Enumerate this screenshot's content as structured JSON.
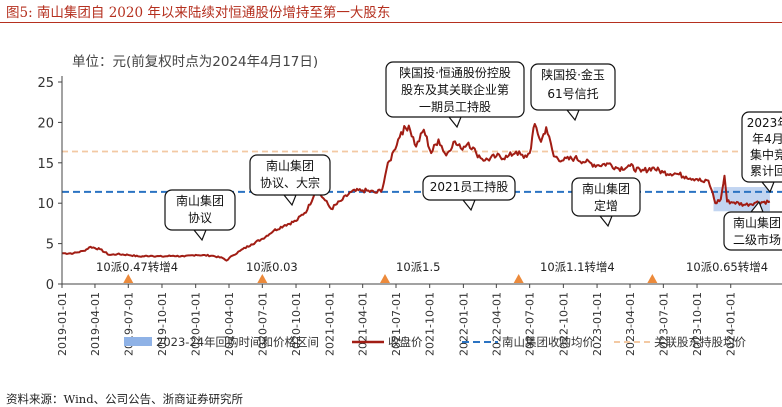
{
  "figure": {
    "title": "图5:  南山集团自 2020 年以来陆续对恒通股份增持至第一大股东",
    "source": "资料来源：Wind、公司公告、浙商证券研究所"
  },
  "chart_data": {
    "type": "line",
    "unit_label": "单位：元(前复权时点为2024年4月17日)",
    "ylim": [
      0,
      25
    ],
    "yticks": [
      0,
      5,
      10,
      15,
      20,
      25
    ],
    "x_range": [
      "2019-01-01",
      "2024-04-17"
    ],
    "xticks": [
      "2019-01-01",
      "2019-04-01",
      "2019-07-01",
      "2019-10-01",
      "2020-01-01",
      "2020-04-01",
      "2020-07-01",
      "2020-10-01",
      "2021-01-01",
      "2021-04-01",
      "2021-07-01",
      "2021-10-01",
      "2022-01-01",
      "2022-04-01",
      "2022-07-01",
      "2022-10-01",
      "2023-01-01",
      "2023-04-01",
      "2023-07-01",
      "2023-10-01",
      "2024-01-01"
    ],
    "colors": {
      "close": "#a11d14",
      "repurchase_avg": "#2b73c2",
      "holder_avg": "#f3c9a3",
      "marker": "#ec8a3b",
      "repurchase_band": "#8fb2e6",
      "axis": "#444444",
      "text": "#333333"
    },
    "series": [
      {
        "name": "收盘价",
        "style": "line",
        "values": [
          [
            "2019-01-02",
            3.8
          ],
          [
            "2019-02-01",
            3.8
          ],
          [
            "2019-03-01",
            4.1
          ],
          [
            "2019-03-20",
            4.6
          ],
          [
            "2019-04-15",
            4.3
          ],
          [
            "2019-05-10",
            3.6
          ],
          [
            "2019-06-01",
            3.7
          ],
          [
            "2019-07-01",
            3.6
          ],
          [
            "2019-08-01",
            3.4
          ],
          [
            "2019-09-01",
            3.5
          ],
          [
            "2019-10-01",
            3.4
          ],
          [
            "2019-11-01",
            3.5
          ],
          [
            "2019-12-01",
            3.4
          ],
          [
            "2020-01-01",
            3.6
          ],
          [
            "2020-02-15",
            3.5
          ],
          [
            "2020-03-15",
            3.2
          ],
          [
            "2020-03-25",
            2.9
          ],
          [
            "2020-04-10",
            3.5
          ],
          [
            "2020-05-01",
            4.1
          ],
          [
            "2020-06-01",
            4.9
          ],
          [
            "2020-07-01",
            5.6
          ],
          [
            "2020-08-01",
            6.6
          ],
          [
            "2020-09-01",
            7.3
          ],
          [
            "2020-10-01",
            7.8
          ],
          [
            "2020-11-01",
            9.2
          ],
          [
            "2020-11-25",
            11.7
          ],
          [
            "2020-12-15",
            10.6
          ],
          [
            "2021-01-05",
            9.3
          ],
          [
            "2021-02-01",
            10.3
          ],
          [
            "2021-03-01",
            11.4
          ],
          [
            "2021-04-01",
            11.6
          ],
          [
            "2021-05-10",
            11.3
          ],
          [
            "2021-05-25",
            11.8
          ],
          [
            "2021-06-05",
            14.2
          ],
          [
            "2021-06-25",
            16.5
          ],
          [
            "2021-07-15",
            18.8
          ],
          [
            "2021-08-05",
            19.6
          ],
          [
            "2021-08-25",
            17.0
          ],
          [
            "2021-09-15",
            19.1
          ],
          [
            "2021-10-05",
            16.2
          ],
          [
            "2021-10-25",
            17.9
          ],
          [
            "2021-11-15",
            15.9
          ],
          [
            "2021-12-05",
            17.6
          ],
          [
            "2021-12-25",
            16.8
          ],
          [
            "2022-01-15",
            17.5
          ],
          [
            "2022-02-05",
            16.2
          ],
          [
            "2022-03-01",
            15.3
          ],
          [
            "2022-04-01",
            15.8
          ],
          [
            "2022-05-01",
            15.7
          ],
          [
            "2022-05-25",
            16.4
          ],
          [
            "2022-06-15",
            15.6
          ],
          [
            "2022-07-01",
            16.2
          ],
          [
            "2022-07-15",
            19.8
          ],
          [
            "2022-08-01",
            17.6
          ],
          [
            "2022-08-15",
            19.4
          ],
          [
            "2022-09-05",
            15.8
          ],
          [
            "2022-10-01",
            15.3
          ],
          [
            "2022-11-01",
            15.6
          ],
          [
            "2022-12-01",
            15.1
          ],
          [
            "2023-01-01",
            14.7
          ],
          [
            "2023-02-01",
            14.9
          ],
          [
            "2023-03-01",
            14.3
          ],
          [
            "2023-04-01",
            14.6
          ],
          [
            "2023-05-01",
            13.9
          ],
          [
            "2023-06-01",
            14.4
          ],
          [
            "2023-07-01",
            13.8
          ],
          [
            "2023-08-01",
            13.7
          ],
          [
            "2023-09-01",
            13.3
          ],
          [
            "2023-10-01",
            13.0
          ],
          [
            "2023-10-20",
            12.6
          ],
          [
            "2023-11-01",
            12.8
          ],
          [
            "2023-11-10",
            11.6
          ],
          [
            "2023-11-20",
            10.0
          ],
          [
            "2023-12-05",
            10.5
          ],
          [
            "2023-12-15",
            13.4
          ],
          [
            "2023-12-22",
            10.2
          ],
          [
            "2024-01-10",
            10.1
          ],
          [
            "2024-02-10",
            9.8
          ],
          [
            "2024-03-10",
            10.1
          ],
          [
            "2024-04-17",
            10.2
          ]
        ]
      },
      {
        "name": "南山集团收购均价",
        "style": "dashed",
        "value": 11.4
      },
      {
        "name": "关联股东持股均价",
        "style": "dashed",
        "value": 16.4
      },
      {
        "name": "2023-24年回购时间和价格区间",
        "style": "band",
        "x_range": [
          "2023-11-15",
          "2024-04-17"
        ],
        "y_range": [
          9.0,
          12.0
        ]
      }
    ],
    "dividend_markers": [
      {
        "date": "2019-07-01",
        "label": "10派0.47转增4"
      },
      {
        "date": "2020-07-01",
        "label": "10派0.03"
      },
      {
        "date": "2021-06-01",
        "label": "10派1.5"
      },
      {
        "date": "2022-06-01",
        "label": "10派1.1转增4"
      },
      {
        "date": "2023-06-01",
        "label": "10派0.65转增4"
      }
    ],
    "annotations": [
      {
        "lines": [
          "南山集团",
          "协议"
        ],
        "tail": [
          4.0,
          3.0
        ]
      },
      {
        "lines": [
          "南山集团",
          "协议、大宗"
        ],
        "tail": [
          9.0,
          7.5
        ]
      },
      {
        "lines": [
          "陕国投·恒通股份控股",
          "股东及其关联企业第",
          "一期员工持股"
        ],
        "tail": [
          18.0,
          19.0
        ]
      },
      {
        "lines": [
          "陕国投·金玉",
          "61号信托"
        ],
        "tail": [
          18.0,
          19.5
        ]
      },
      {
        "lines": [
          "2021员工持股"
        ],
        "tail": [
          13.0,
          15.5
        ]
      },
      {
        "lines": [
          "南山集团",
          "定增"
        ],
        "tail": [
          13.5,
          16.0
        ]
      },
      {
        "lines": [
          "2023年",
          "年4月",
          "集中竞",
          "累计回"
        ],
        "tail": [
          14.0,
          13.0
        ]
      },
      {
        "lines": [
          "南山集团",
          "二级市场"
        ],
        "tail": [
          8.5,
          10.0
        ]
      }
    ],
    "legend": [
      {
        "label": "2023-24年回购时间和价格区间",
        "type": "band"
      },
      {
        "label": "收盘价",
        "type": "line"
      },
      {
        "label": "南山集团收购均价",
        "type": "dashed-blue"
      },
      {
        "label": "关联股东持股均价",
        "type": "dashed-orange"
      }
    ]
  }
}
